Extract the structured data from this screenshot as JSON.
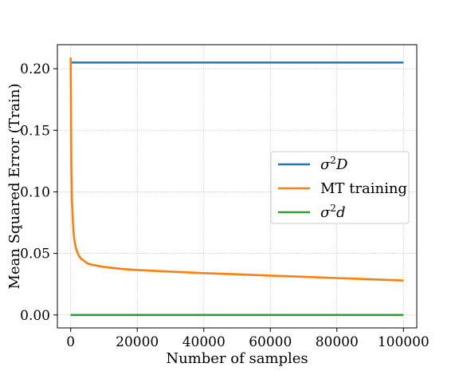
{
  "chart_data": {
    "type": "line",
    "xlabel": "Number of samples",
    "ylabel": "Mean Squared Error (Train)",
    "xlim": [
      -4000,
      104000
    ],
    "ylim": [
      -0.0105,
      0.2195
    ],
    "x_ticks": [
      0,
      20000,
      40000,
      60000,
      80000,
      100000
    ],
    "x_tick_labels": [
      "0",
      "20000",
      "40000",
      "60000",
      "80000",
      "100000"
    ],
    "y_ticks": [
      0.0,
      0.05,
      0.1,
      0.15,
      0.2
    ],
    "y_tick_labels": [
      "0.00",
      "0.05",
      "0.10",
      "0.15",
      "0.20"
    ],
    "grid": true,
    "legend_position": "center-right",
    "series": [
      {
        "name": "σ²D",
        "color": "#1f77b4",
        "x": [
          0,
          100000
        ],
        "y": [
          0.205,
          0.205
        ]
      },
      {
        "name": "MT training",
        "color": "#ff7f0e",
        "x": [
          0,
          200,
          400,
          700,
          1000,
          1500,
          2000,
          2500,
          3000,
          4000,
          5000,
          6000,
          8000,
          10000,
          15000,
          20000,
          30000,
          40000,
          50000,
          60000,
          70000,
          80000,
          90000,
          100000
        ],
        "y": [
          0.209,
          0.12,
          0.092,
          0.074,
          0.063,
          0.055,
          0.051,
          0.048,
          0.046,
          0.044,
          0.042,
          0.041,
          0.04,
          0.039,
          0.0375,
          0.0365,
          0.0352,
          0.034,
          0.033,
          0.032,
          0.031,
          0.03,
          0.029,
          0.028
        ]
      },
      {
        "name": "σ²d",
        "color": "#2ca02c",
        "x": [
          0,
          100000
        ],
        "y": [
          0.0,
          0.0
        ]
      }
    ],
    "legend": [
      {
        "base": "σ",
        "sup": "2",
        "tail": "D",
        "math": true
      },
      {
        "base": "MT training",
        "sup": "",
        "tail": "",
        "math": false
      },
      {
        "base": "σ",
        "sup": "2",
        "tail": "d",
        "math": true
      }
    ]
  }
}
